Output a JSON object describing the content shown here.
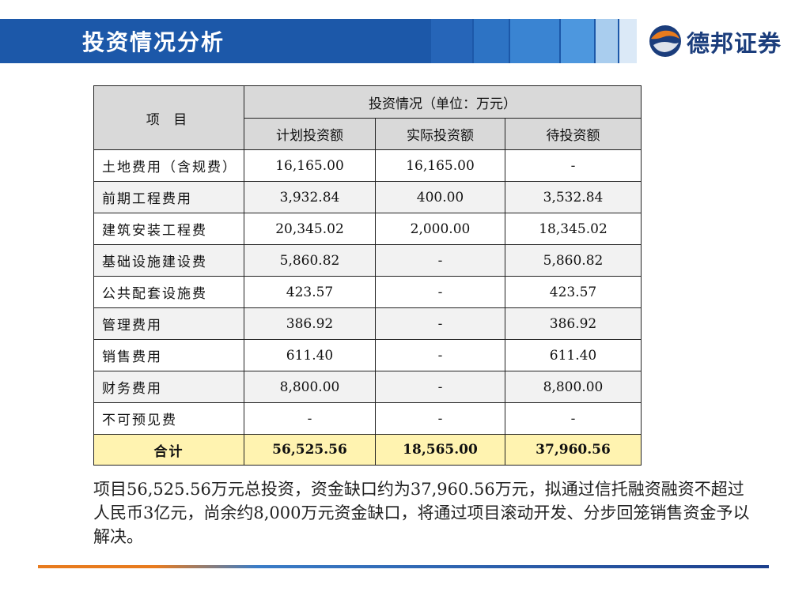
{
  "header": {
    "title": "投资情况分析",
    "logo_text": "德邦证券"
  },
  "table": {
    "col_item": "项 目",
    "group_header": "投资情况（单位：万元）",
    "columns": [
      "计划投资额",
      "实际投资额",
      "待投资额"
    ],
    "rows": [
      {
        "label": "土地费用（含规费）",
        "values": [
          "16,165.00",
          "16,165.00",
          "-"
        ]
      },
      {
        "label": "前期工程费用",
        "values": [
          "3,932.84",
          "400.00",
          "3,532.84"
        ]
      },
      {
        "label": "建筑安装工程费",
        "values": [
          "20,345.02",
          "2,000.00",
          "18,345.02"
        ]
      },
      {
        "label": "基础设施建设费",
        "values": [
          "5,860.82",
          "-",
          "5,860.82"
        ]
      },
      {
        "label": "公共配套设施费",
        "values": [
          "423.57",
          "-",
          "423.57"
        ]
      },
      {
        "label": "管理费用",
        "values": [
          "386.92",
          "-",
          "386.92"
        ]
      },
      {
        "label": "销售费用",
        "values": [
          "611.40",
          "-",
          "611.40"
        ]
      },
      {
        "label": "财务费用",
        "values": [
          "8,800.00",
          "-",
          "8,800.00"
        ]
      },
      {
        "label": "不可预见费",
        "values": [
          "-",
          "-",
          "-"
        ]
      }
    ],
    "total": {
      "label": "合计",
      "values": [
        "56,525.56",
        "18,565.00",
        "37,960.56"
      ]
    }
  },
  "note": "项目56,525.56万元总投资，资金缺口约为37,960.56万元，拟通过信托融资融资不超过人民币3亿元，尚余约8,000万元资金缺口，将通过项目滚动开发、分步回笼销售资金予以解决。",
  "colors": {
    "header_blue": "#1c58a9",
    "total_row": "#fff3b0",
    "header_cell": "#d9d9d9",
    "logo_orange": "#e87b1e",
    "logo_blue": "#1b3d7c"
  }
}
